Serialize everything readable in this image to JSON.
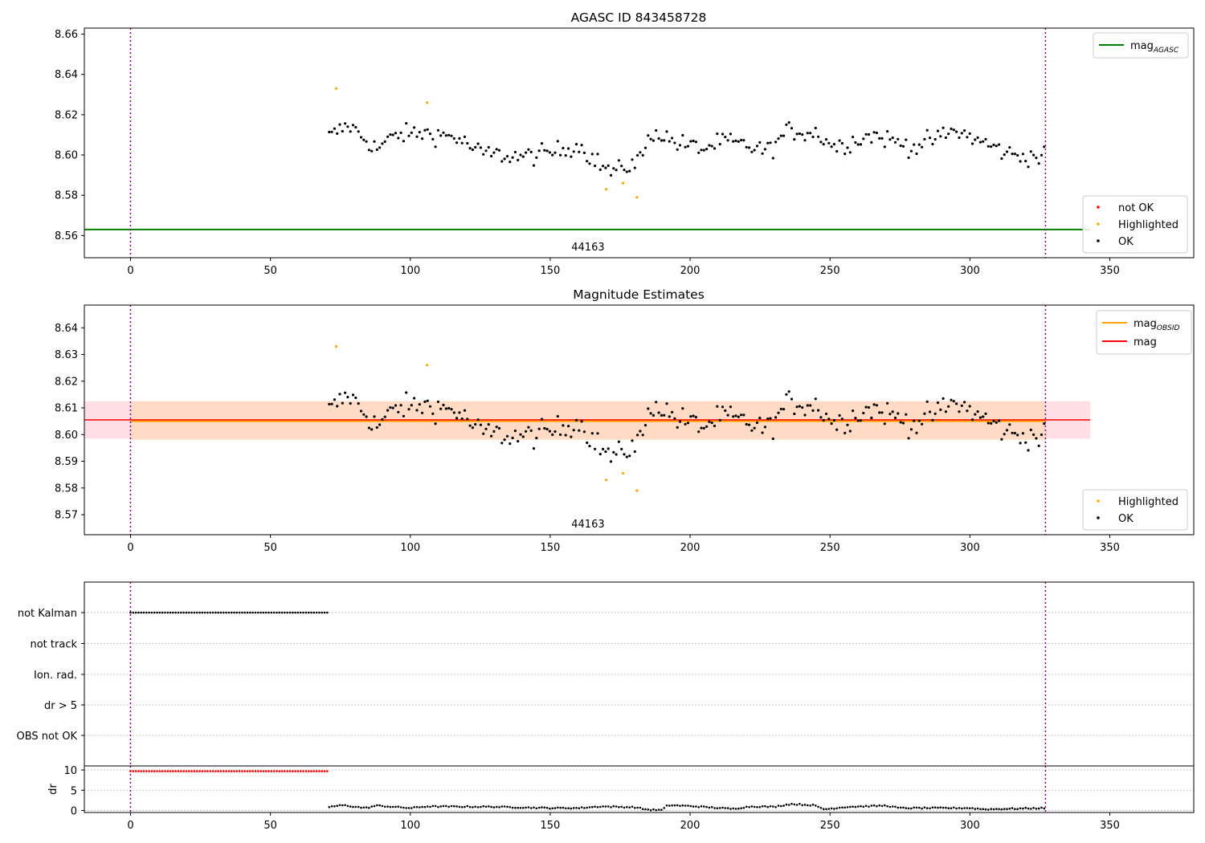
{
  "colors": {
    "ok": "#000000",
    "highlighted": "#ffa500",
    "not_ok": "#ff0000",
    "mag_agasc": "#008000",
    "mag_obsid": "#ffa500",
    "mag": "#ff0000",
    "obs_marker": "#800080",
    "band_mag": "#ffc0cb",
    "band_obsid": "#ffdab9",
    "grid": "#b0b0b0"
  },
  "chart_data": [
    {
      "type": "scatter",
      "title": "AGASC ID 843458728",
      "xlim": [
        -16.5,
        380
      ],
      "ylim": [
        8.549,
        8.663
      ],
      "xticks": [
        0,
        50,
        100,
        150,
        200,
        250,
        300,
        350
      ],
      "yticks": [
        8.56,
        8.58,
        8.6,
        8.62,
        8.64,
        8.66
      ],
      "ytick_labels": [
        "8.56",
        "8.58",
        "8.60",
        "8.62",
        "8.64",
        "8.66"
      ],
      "obs_markers": [
        0,
        327
      ],
      "obsid_label": "44163",
      "obsid_label_x": 163.5,
      "mag_agasc": 8.563,
      "mag_agasc_xrange": [
        -16.5,
        343
      ],
      "legend_lines": [
        {
          "name": "mag",
          "sub": "AGASC",
          "color_key": "mag_agasc"
        }
      ],
      "legend_points": [
        {
          "name": "not OK",
          "color_key": "not_ok"
        },
        {
          "name": "Highlighted",
          "color_key": "highlighted"
        },
        {
          "name": "OK",
          "color_key": "ok"
        }
      ],
      "highlighted": [
        [
          73.5,
          8.633
        ],
        [
          106,
          8.626
        ],
        [
          170,
          8.583
        ],
        [
          176,
          8.586
        ],
        [
          181,
          8.579
        ]
      ]
    },
    {
      "type": "scatter",
      "title": "Magnitude Estimates",
      "xlim": [
        -16.5,
        380
      ],
      "ylim": [
        8.5625,
        8.6485
      ],
      "xticks": [
        0,
        50,
        100,
        150,
        200,
        250,
        300,
        350
      ],
      "yticks": [
        8.57,
        8.58,
        8.59,
        8.6,
        8.61,
        8.62,
        8.63,
        8.64
      ],
      "ytick_labels": [
        "8.57",
        "8.58",
        "8.59",
        "8.60",
        "8.61",
        "8.62",
        "8.63",
        "8.64"
      ],
      "obs_markers": [
        0,
        327
      ],
      "obsid_label": "44163",
      "obsid_label_x": 163.5,
      "mag": 8.6055,
      "mag_xrange": [
        -16.5,
        343
      ],
      "mag_band": [
        8.5985,
        8.6125
      ],
      "mag_obsid": 8.605,
      "mag_obsid_xrange": [
        0,
        327
      ],
      "obsid_band": [
        8.598,
        8.6125
      ],
      "legend_lines": [
        {
          "name": "mag",
          "sub": "OBSID",
          "color_key": "mag_obsid"
        },
        {
          "name": "mag",
          "sub": "",
          "color_key": "mag"
        }
      ],
      "legend_points": [
        {
          "name": "Highlighted",
          "color_key": "highlighted"
        },
        {
          "name": "OK",
          "color_key": "ok"
        }
      ],
      "highlighted": [
        [
          73.5,
          8.633
        ],
        [
          106,
          8.626
        ],
        [
          170,
          8.583
        ],
        [
          176,
          8.5855
        ],
        [
          181,
          8.579
        ]
      ]
    },
    {
      "type": "scatter",
      "title": "",
      "xlim": [
        -16.5,
        380
      ],
      "xticks": [
        0,
        50,
        100,
        150,
        200,
        250,
        300,
        350
      ],
      "obs_markers": [
        0,
        327
      ],
      "flag_categories": [
        "not Kalman",
        "not track",
        "Ion. rad.",
        "dr > 5",
        "OBS not OK"
      ],
      "not_kalman_xrange": [
        0,
        70.5
      ],
      "dr_ylabel": "dr",
      "dr_ylim": [
        -0.5,
        11
      ],
      "dr_yticks": [
        0,
        5,
        10
      ],
      "dr_ytick_labels": [
        "0",
        "5",
        "10"
      ],
      "dr_red_value": 9.7,
      "dr_red_xrange": [
        0,
        70.5
      ],
      "dr_profile": [
        [
          71,
          0.9
        ],
        [
          76,
          1.3
        ],
        [
          84,
          0.6
        ],
        [
          88,
          1.2
        ],
        [
          100,
          0.6
        ],
        [
          106,
          1.0
        ],
        [
          130,
          0.9
        ],
        [
          150,
          0.6
        ],
        [
          160,
          0.6
        ],
        [
          168,
          1.0
        ],
        [
          180,
          0.8
        ],
        [
          185,
          0.2
        ],
        [
          190,
          0.1
        ],
        [
          192,
          1.3
        ],
        [
          200,
          1.1
        ],
        [
          215,
          0.4
        ],
        [
          222,
          1.0
        ],
        [
          230,
          0.9
        ],
        [
          236,
          1.6
        ],
        [
          244,
          1.3
        ],
        [
          248,
          0.3
        ],
        [
          256,
          0.9
        ],
        [
          270,
          1.2
        ],
        [
          275,
          0.6
        ],
        [
          290,
          0.6
        ],
        [
          300,
          0.6
        ],
        [
          305,
          0.3
        ],
        [
          320,
          0.5
        ],
        [
          327,
          0.6
        ]
      ]
    }
  ]
}
